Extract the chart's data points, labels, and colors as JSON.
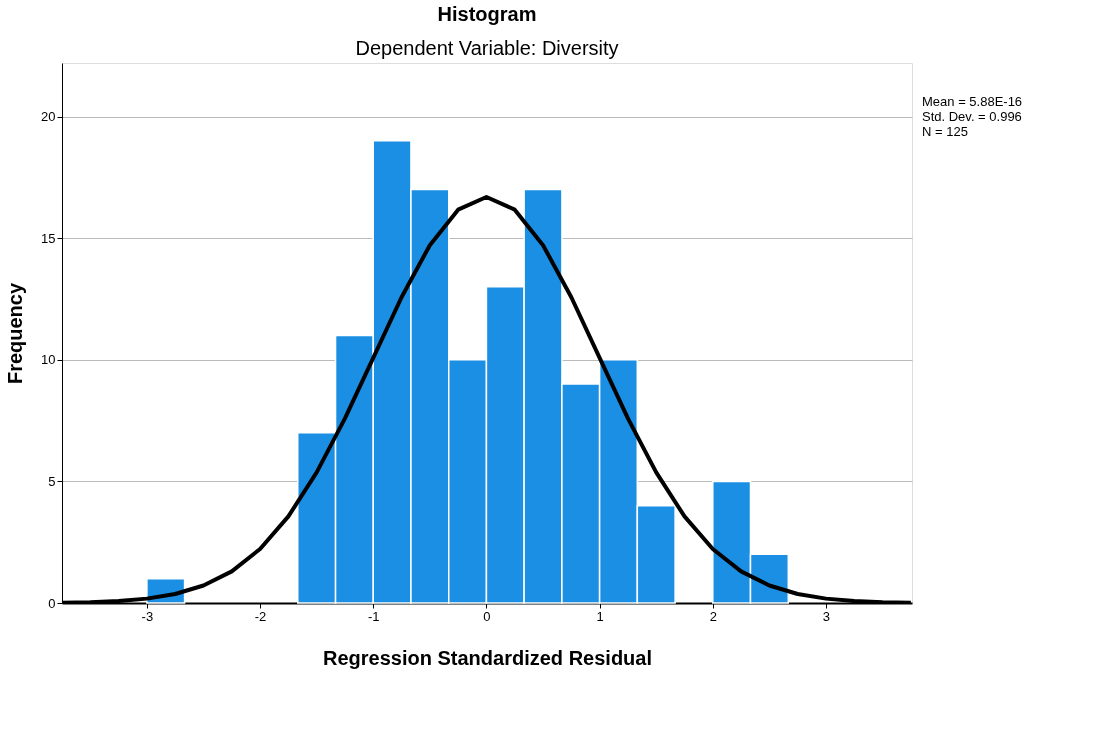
{
  "chart_data": {
    "type": "histogram",
    "title": "Histogram",
    "subtitle": "Dependent Variable: Diversity",
    "xlabel": "Regression Standardized Residual",
    "ylabel": "Frequency",
    "bins": [
      -3,
      -2.667,
      -2.333,
      -2,
      -1.667,
      -1.333,
      -1,
      -0.667,
      -0.333,
      0,
      0.333,
      0.667,
      1,
      1.333,
      1.667,
      2,
      2.333,
      2.667
    ],
    "values": [
      1,
      0,
      0,
      0,
      7,
      11,
      19,
      17,
      10,
      13,
      17,
      9,
      10,
      4,
      0,
      5,
      2
    ],
    "color": "#1a8fe3",
    "series": [
      {
        "type": "line",
        "color": "#000000",
        "x": [
          -3.75,
          -3.5,
          -3.25,
          -3,
          -2.75,
          -2.5,
          -2.25,
          -2,
          -1.75,
          -1.5,
          -1.25,
          -1,
          -0.75,
          -0.5,
          -0.25,
          0,
          0.25,
          0.5,
          0.75,
          1,
          1.25,
          1.5,
          1.75,
          2,
          2.25,
          2.5,
          2.75,
          3,
          3.25,
          3.5,
          3.75
        ],
        "values": [
          0.01,
          0.03,
          0.08,
          0.18,
          0.37,
          0.72,
          1.3,
          2.22,
          3.56,
          5.37,
          7.59,
          10.08,
          12.57,
          14.71,
          16.17,
          16.69,
          16.17,
          14.71,
          12.57,
          10.08,
          7.59,
          5.37,
          3.56,
          2.22,
          1.3,
          0.72,
          0.37,
          0.18,
          0.08,
          0.03,
          0.01
        ]
      }
    ],
    "xlim": [
      -3.75,
      3.76
    ],
    "xticks": [
      -3,
      -2,
      -1,
      0,
      1,
      2,
      3
    ],
    "ylim": [
      0,
      22.2
    ],
    "yticks": [
      0,
      5,
      10,
      15,
      20
    ],
    "grid": "y",
    "annotations": [
      "Mean = 5.88E-16",
      "Std. Dev. = 0.996",
      "N = 125"
    ]
  }
}
